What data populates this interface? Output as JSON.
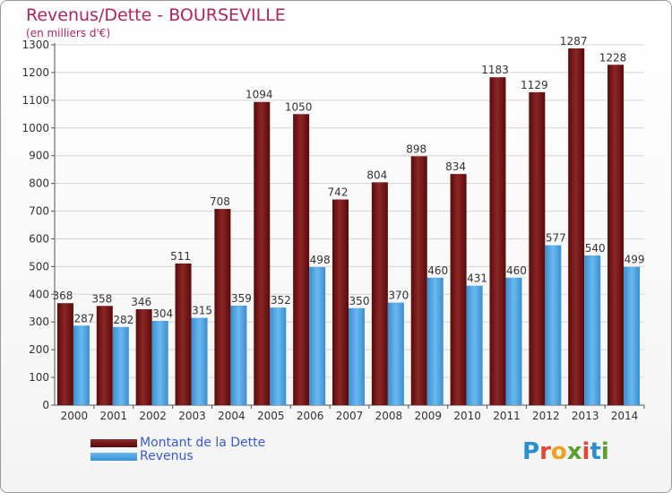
{
  "header": {
    "title": "Revenus/Dette - BOURSEVILLE",
    "subtitle": "(en milliers d'€)"
  },
  "legend": {
    "debt_label": "Montant de la Dette",
    "revenue_label": "Revenus"
  },
  "brand": {
    "letters": [
      "P",
      "r",
      "o",
      "x",
      "i",
      "t",
      "i"
    ],
    "colors": [
      "#2a8fd0",
      "#e0483a",
      "#f0a020",
      "#5aa02a",
      "#e0483a",
      "#2a8fd0",
      "#5aa02a"
    ]
  },
  "colors": {
    "debt": "#6e1414",
    "revenue": "#4aa6e6",
    "title": "#b3245c",
    "legend_text": "#3a5ad6"
  },
  "chart_data": {
    "type": "bar",
    "categories": [
      "2000",
      "2001",
      "2002",
      "2003",
      "2004",
      "2005",
      "2006",
      "2007",
      "2008",
      "2009",
      "2010",
      "2011",
      "2012",
      "2013",
      "2014"
    ],
    "series": [
      {
        "name": "Montant de la Dette",
        "values": [
          368,
          358,
          346,
          511,
          708,
          1094,
          1050,
          742,
          804,
          898,
          834,
          1183,
          1129,
          1287,
          1228
        ]
      },
      {
        "name": "Revenus",
        "values": [
          287,
          282,
          304,
          315,
          359,
          352,
          498,
          350,
          370,
          460,
          431,
          460,
          577,
          540,
          499
        ]
      }
    ],
    "yticks": [
      0,
      100,
      200,
      300,
      400,
      500,
      600,
      700,
      800,
      900,
      1000,
      1100,
      1200,
      1300
    ],
    "ylim": [
      0,
      1300
    ],
    "grid": true,
    "legend_position": "bottom-left"
  }
}
